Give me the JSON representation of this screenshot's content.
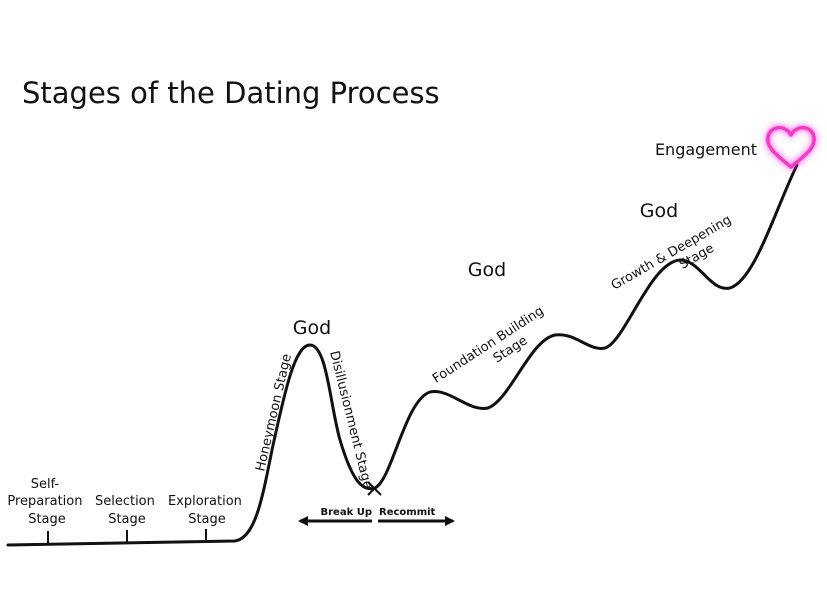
{
  "title": "Stages of the Dating Process",
  "god_labels": [
    "God",
    "God",
    "God"
  ],
  "stages": {
    "self_preparation": [
      "Self-",
      "Preparation",
      "Stage"
    ],
    "selection": [
      "Selection",
      "Stage"
    ],
    "exploration": [
      "Exploration",
      "Stage"
    ],
    "honeymoon": "Honeymoon Stage",
    "disillusionment": "Disillusionment Stage",
    "foundation_building": [
      "Foundation Building",
      "Stage"
    ],
    "growth_deepening": [
      "Growth & Deepening",
      "Stage"
    ],
    "engagement": "Engagement"
  },
  "arrows": {
    "break_up": "Break Up",
    "recommit": "Recommit"
  },
  "colors": {
    "line": "#111111",
    "heart": "#ff33cc",
    "heart_glow": "#ff99ee"
  }
}
